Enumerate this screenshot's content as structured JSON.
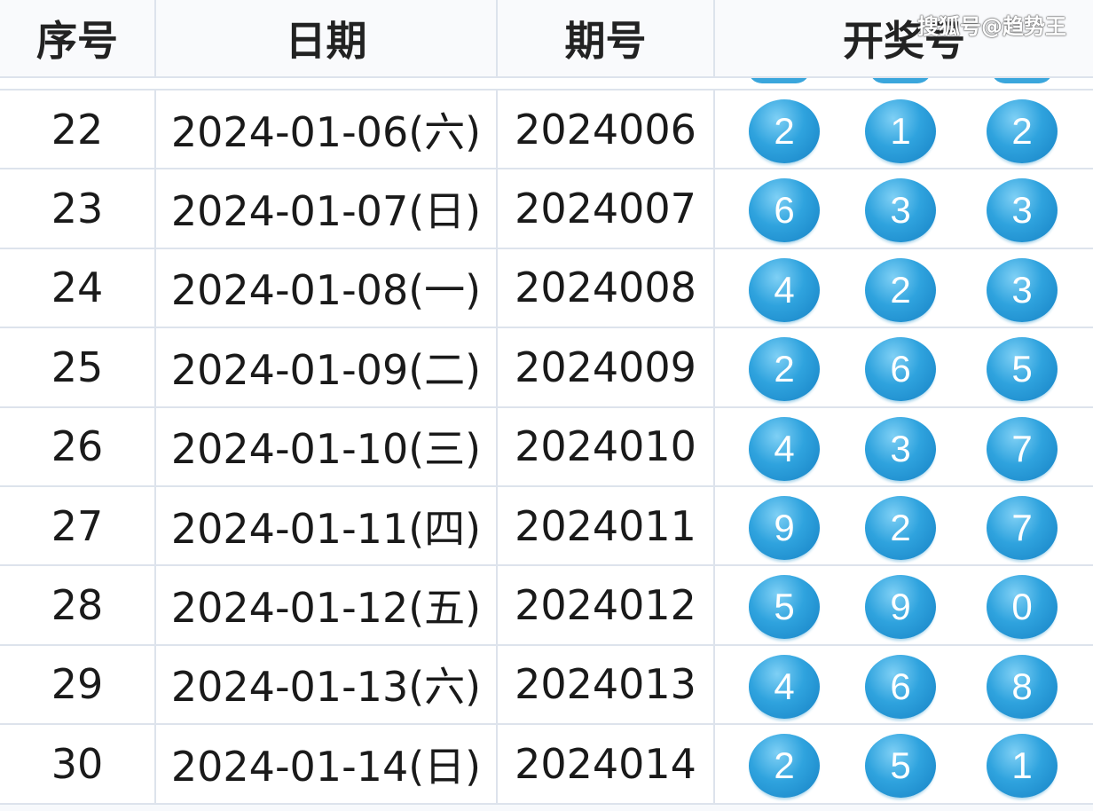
{
  "headers": [
    "序号",
    "日期",
    "期号",
    "开奖号"
  ],
  "watermark": "搜狐号@趋势王",
  "ball_color": "#2fa3de",
  "rows": [
    {
      "seq": "22",
      "date": "2024-01-06(六)",
      "issue": "2024006",
      "nums": [
        "2",
        "1",
        "2"
      ]
    },
    {
      "seq": "23",
      "date": "2024-01-07(日)",
      "issue": "2024007",
      "nums": [
        "6",
        "3",
        "3"
      ]
    },
    {
      "seq": "24",
      "date": "2024-01-08(一)",
      "issue": "2024008",
      "nums": [
        "4",
        "2",
        "3"
      ]
    },
    {
      "seq": "25",
      "date": "2024-01-09(二)",
      "issue": "2024009",
      "nums": [
        "2",
        "6",
        "5"
      ]
    },
    {
      "seq": "26",
      "date": "2024-01-10(三)",
      "issue": "2024010",
      "nums": [
        "4",
        "3",
        "7"
      ]
    },
    {
      "seq": "27",
      "date": "2024-01-11(四)",
      "issue": "2024011",
      "nums": [
        "9",
        "2",
        "7"
      ]
    },
    {
      "seq": "28",
      "date": "2024-01-12(五)",
      "issue": "2024012",
      "nums": [
        "5",
        "9",
        "0"
      ]
    },
    {
      "seq": "29",
      "date": "2024-01-13(六)",
      "issue": "2024013",
      "nums": [
        "4",
        "6",
        "8"
      ]
    },
    {
      "seq": "30",
      "date": "2024-01-14(日)",
      "issue": "2024014",
      "nums": [
        "2",
        "5",
        "1"
      ]
    }
  ]
}
